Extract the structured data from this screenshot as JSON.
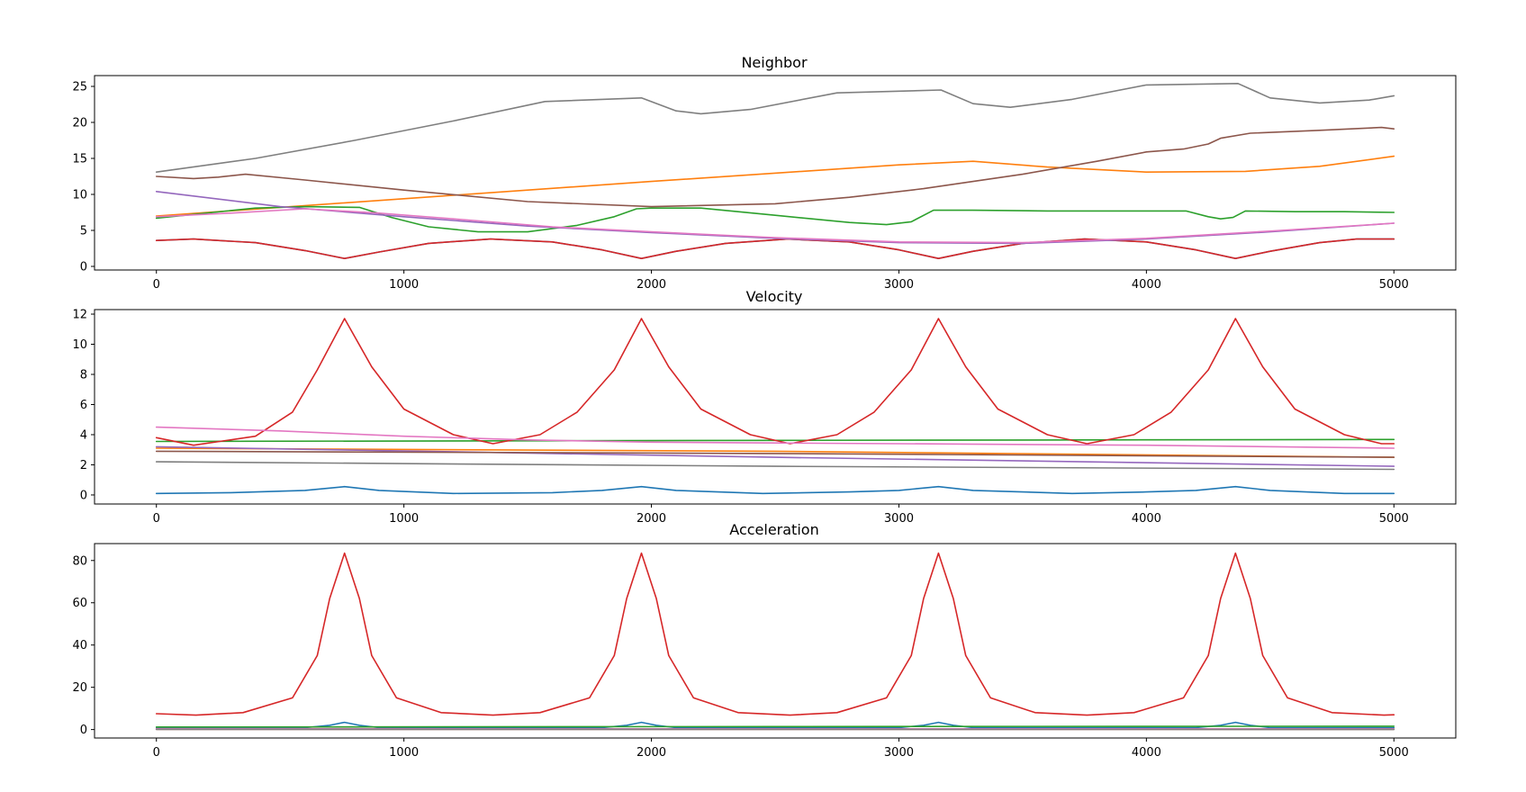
{
  "chart_data": [
    {
      "type": "line",
      "title": "Neighbor",
      "xlabel": "",
      "ylabel": "",
      "xlim": [
        -250,
        5250
      ],
      "ylim": [
        -0.5,
        26.5
      ],
      "xticks": [
        0,
        1000,
        2000,
        3000,
        4000,
        5000
      ],
      "yticks": [
        0,
        5,
        10,
        15,
        20,
        25
      ],
      "grid": false,
      "series": [
        {
          "color": "#1f77b4",
          "x": [
            0,
            150,
            400,
            600,
            760,
            900,
            1100,
            1350,
            1600,
            1800,
            1960,
            2100,
            2300,
            2550,
            2800,
            3000,
            3160,
            3300,
            3500,
            3750,
            4000,
            4200,
            4360,
            4500,
            4700,
            4850,
            5000
          ],
          "y": [
            3.6,
            3.8,
            3.3,
            2.2,
            1.1,
            2.0,
            3.2,
            3.8,
            3.4,
            2.3,
            1.1,
            2.1,
            3.2,
            3.8,
            3.4,
            2.3,
            1.1,
            2.1,
            3.2,
            3.8,
            3.4,
            2.3,
            1.1,
            2.1,
            3.3,
            3.8,
            3.8
          ]
        },
        {
          "color": "#ff7f0e",
          "x": [
            0,
            1000,
            2000,
            3000,
            3300,
            3600,
            4000,
            4400,
            4700,
            5000
          ],
          "y": [
            7.0,
            9.4,
            11.8,
            14.1,
            14.6,
            13.8,
            13.1,
            13.2,
            13.9,
            15.3
          ]
        },
        {
          "color": "#2ca02c",
          "x": [
            0,
            200,
            400,
            600,
            820,
            950,
            1100,
            1300,
            1500,
            1700,
            1850,
            1940,
            2000,
            2200,
            2500,
            2800,
            2950,
            3050,
            3140,
            3300,
            3600,
            3900,
            4160,
            4250,
            4300,
            4350,
            4400,
            4600,
            4800,
            5000
          ],
          "y": [
            6.7,
            7.4,
            8.1,
            8.3,
            8.2,
            6.8,
            5.5,
            4.8,
            4.8,
            5.7,
            6.9,
            8.0,
            8.1,
            8.1,
            7.1,
            6.1,
            5.8,
            6.2,
            7.8,
            7.8,
            7.7,
            7.7,
            7.7,
            6.9,
            6.6,
            6.8,
            7.7,
            7.6,
            7.6,
            7.5
          ]
        },
        {
          "color": "#d62728",
          "x": [
            0,
            150,
            400,
            600,
            760,
            900,
            1100,
            1350,
            1600,
            1800,
            1960,
            2100,
            2300,
            2550,
            2800,
            3000,
            3160,
            3300,
            3500,
            3750,
            4000,
            4200,
            4360,
            4500,
            4700,
            4850,
            5000
          ],
          "y": [
            3.6,
            3.8,
            3.3,
            2.2,
            1.1,
            2.0,
            3.2,
            3.8,
            3.4,
            2.3,
            1.1,
            2.1,
            3.2,
            3.8,
            3.4,
            2.3,
            1.1,
            2.1,
            3.2,
            3.8,
            3.4,
            2.3,
            1.1,
            2.1,
            3.3,
            3.8,
            3.8
          ]
        },
        {
          "color": "#9467bd",
          "x": [
            0,
            500,
            1000,
            1500,
            2000,
            2500,
            3000,
            3500,
            4000,
            4500,
            5000
          ],
          "y": [
            10.4,
            8.3,
            6.9,
            5.6,
            4.7,
            3.9,
            3.3,
            3.2,
            3.8,
            4.8,
            6.0
          ]
        },
        {
          "color": "#8c564b",
          "x": [
            0,
            150,
            250,
            360,
            600,
            1000,
            1500,
            2000,
            2500,
            2800,
            3100,
            3500,
            3800,
            4000,
            4150,
            4250,
            4300,
            4420,
            4700,
            4950,
            5000
          ],
          "y": [
            12.5,
            12.2,
            12.4,
            12.8,
            12.0,
            10.6,
            9.0,
            8.3,
            8.7,
            9.6,
            10.8,
            12.8,
            14.6,
            15.9,
            16.3,
            17.0,
            17.8,
            18.5,
            18.9,
            19.3,
            19.1
          ]
        },
        {
          "color": "#e377c2",
          "x": [
            0,
            300,
            600,
            900,
            1200,
            1600,
            2000,
            2500,
            3000,
            3500,
            4000,
            4500,
            5000
          ],
          "y": [
            6.9,
            7.4,
            8.0,
            7.4,
            6.6,
            5.5,
            4.8,
            4.0,
            3.4,
            3.3,
            3.9,
            4.9,
            6.0
          ]
        },
        {
          "color": "#7f7f7f",
          "x": [
            0,
            400,
            800,
            1200,
            1570,
            1960,
            2100,
            2200,
            2400,
            2750,
            3170,
            3300,
            3450,
            3700,
            4000,
            4370,
            4500,
            4700,
            4900,
            5000
          ],
          "y": [
            13.1,
            15.0,
            17.5,
            20.2,
            22.9,
            23.4,
            21.6,
            21.2,
            21.8,
            24.1,
            24.5,
            22.6,
            22.1,
            23.2,
            25.2,
            25.4,
            23.4,
            22.7,
            23.1,
            23.7
          ]
        }
      ]
    },
    {
      "type": "line",
      "title": "Velocity",
      "xlabel": "",
      "ylabel": "",
      "xlim": [
        -250,
        5250
      ],
      "ylim": [
        -0.6,
        12.3
      ],
      "xticks": [
        0,
        1000,
        2000,
        3000,
        4000,
        5000
      ],
      "yticks": [
        0,
        2,
        4,
        6,
        8,
        10,
        12
      ],
      "grid": false,
      "series": [
        {
          "color": "#1f77b4",
          "x": [
            0,
            300,
            600,
            760,
            900,
            1200,
            1600,
            1800,
            1960,
            2100,
            2450,
            2800,
            3000,
            3160,
            3300,
            3700,
            4000,
            4200,
            4360,
            4500,
            4800,
            5000
          ],
          "y": [
            0.1,
            0.15,
            0.3,
            0.55,
            0.3,
            0.1,
            0.15,
            0.3,
            0.55,
            0.3,
            0.1,
            0.2,
            0.3,
            0.55,
            0.3,
            0.1,
            0.2,
            0.3,
            0.55,
            0.3,
            0.1,
            0.1
          ]
        },
        {
          "color": "#ff7f0e",
          "x": [
            0,
            2500,
            5000
          ],
          "y": [
            3.1,
            2.9,
            2.5
          ]
        },
        {
          "color": "#2ca02c",
          "x": [
            0,
            2500,
            5000
          ],
          "y": [
            3.55,
            3.62,
            3.68
          ]
        },
        {
          "color": "#d62728",
          "x": [
            0,
            150,
            400,
            550,
            650,
            760,
            870,
            1000,
            1200,
            1360,
            1550,
            1700,
            1850,
            1960,
            2070,
            2200,
            2400,
            2560,
            2750,
            2900,
            3050,
            3160,
            3270,
            3400,
            3600,
            3760,
            3950,
            4100,
            4250,
            4360,
            4470,
            4600,
            4800,
            4950,
            5000
          ],
          "y": [
            3.8,
            3.3,
            3.9,
            5.5,
            8.3,
            11.7,
            8.5,
            5.7,
            4.0,
            3.4,
            4.0,
            5.5,
            8.3,
            11.7,
            8.5,
            5.7,
            4.0,
            3.4,
            4.0,
            5.5,
            8.3,
            11.7,
            8.5,
            5.7,
            4.0,
            3.4,
            4.0,
            5.5,
            8.3,
            11.7,
            8.5,
            5.7,
            4.0,
            3.4,
            3.4
          ]
        },
        {
          "color": "#9467bd",
          "x": [
            0,
            2500,
            5000
          ],
          "y": [
            3.2,
            2.5,
            1.9
          ]
        },
        {
          "color": "#8c564b",
          "x": [
            0,
            2500,
            5000
          ],
          "y": [
            2.9,
            2.75,
            2.5
          ]
        },
        {
          "color": "#e377c2",
          "x": [
            0,
            500,
            1000,
            1500,
            2000,
            2500,
            3000,
            4000,
            5000
          ],
          "y": [
            4.5,
            4.25,
            3.9,
            3.65,
            3.5,
            3.45,
            3.4,
            3.3,
            3.1
          ]
        },
        {
          "color": "#7f7f7f",
          "x": [
            0,
            2500,
            5000
          ],
          "y": [
            2.2,
            1.9,
            1.7
          ]
        }
      ]
    },
    {
      "type": "line",
      "title": "Acceleration",
      "xlabel": "",
      "ylabel": "",
      "xlim": [
        -250,
        5250
      ],
      "ylim": [
        -4,
        88
      ],
      "xticks": [
        0,
        1000,
        2000,
        3000,
        4000,
        5000
      ],
      "yticks": [
        0,
        20,
        40,
        60,
        80
      ],
      "grid": false,
      "series": [
        {
          "color": "#1f77b4",
          "x": [
            0,
            600,
            700,
            760,
            820,
            900,
            1800,
            1900,
            1960,
            2020,
            2100,
            3000,
            3100,
            3160,
            3220,
            3300,
            4200,
            4300,
            4360,
            4420,
            4500,
            5000
          ],
          "y": [
            0.8,
            0.9,
            2.0,
            3.4,
            2.0,
            0.9,
            0.9,
            2.0,
            3.4,
            2.0,
            0.9,
            0.9,
            2.0,
            3.4,
            2.0,
            0.9,
            0.9,
            2.0,
            3.4,
            2.0,
            0.9,
            0.9
          ]
        },
        {
          "color": "#ff7f0e",
          "x": [
            0,
            5000
          ],
          "y": [
            0.3,
            0.3
          ]
        },
        {
          "color": "#2ca02c",
          "x": [
            0,
            2500,
            5000
          ],
          "y": [
            1.2,
            1.4,
            1.6
          ]
        },
        {
          "color": "#d62728",
          "x": [
            0,
            160,
            350,
            550,
            650,
            700,
            760,
            820,
            870,
            970,
            1150,
            1360,
            1550,
            1750,
            1850,
            1900,
            1960,
            2020,
            2070,
            2170,
            2350,
            2560,
            2750,
            2950,
            3050,
            3100,
            3160,
            3220,
            3270,
            3370,
            3550,
            3760,
            3950,
            4150,
            4250,
            4300,
            4360,
            4420,
            4470,
            4570,
            4750,
            4960,
            5000
          ],
          "y": [
            7.5,
            6.8,
            8.0,
            15.0,
            35.0,
            62.0,
            83.5,
            62.0,
            35.0,
            15.0,
            8.0,
            6.8,
            8.0,
            15.0,
            35.0,
            62.0,
            83.5,
            62.0,
            35.0,
            15.0,
            8.0,
            6.8,
            8.0,
            15.0,
            35.0,
            62.0,
            83.5,
            62.0,
            35.0,
            15.0,
            8.0,
            6.8,
            8.0,
            15.0,
            35.0,
            62.0,
            83.5,
            62.0,
            35.0,
            15.0,
            8.0,
            6.8,
            7.0
          ]
        },
        {
          "color": "#9467bd",
          "x": [
            0,
            5000
          ],
          "y": [
            0.2,
            0.2
          ]
        },
        {
          "color": "#8c564b",
          "x": [
            0,
            5000
          ],
          "y": [
            0.1,
            0.1
          ]
        },
        {
          "color": "#e377c2",
          "x": [
            0,
            5000
          ],
          "y": [
            0.4,
            0.3
          ]
        },
        {
          "color": "#7f7f7f",
          "x": [
            0,
            5000
          ],
          "y": [
            0.15,
            0.1
          ]
        }
      ]
    }
  ]
}
